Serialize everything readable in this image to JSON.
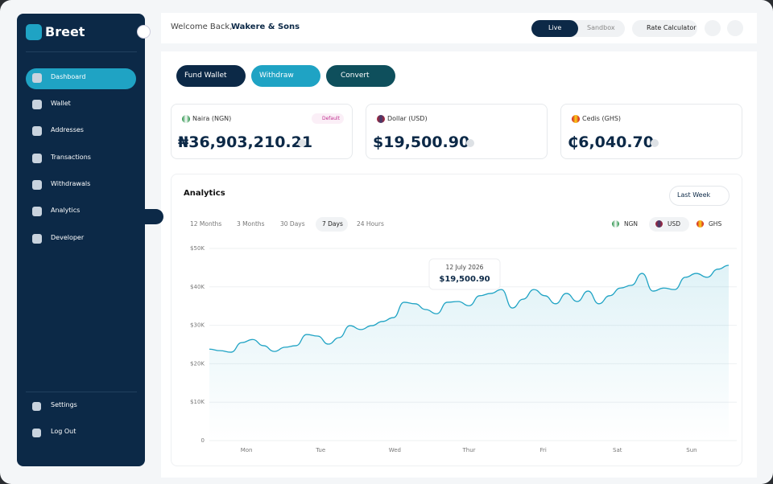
{
  "sidebar": {
    "brand": "Breet",
    "nav": [
      "Dashboard",
      "Wallet",
      "Addresses",
      "Transactions",
      "Withdrawals",
      "Analytics",
      "Developer"
    ],
    "footer": [
      "Settings",
      "Log Out"
    ]
  },
  "header": {
    "greeting": "Welcome Back,",
    "company": "Wakere & Sons",
    "modes": [
      "Live",
      "Sandbox"
    ],
    "rate_calculator": "Rate Calculator"
  },
  "actions": [
    "Fund Wallet",
    "Withdraw",
    "Convert"
  ],
  "balances": [
    {
      "label": "Naira (NGN)",
      "badge": "Default",
      "amount": "₦36,903,210.21"
    },
    {
      "label": "Dollar (USD)",
      "amount": "$19,500.90"
    },
    {
      "label": "Cedis (GHS)",
      "amount": "₵6,040.70"
    }
  ],
  "analytics": {
    "title": "Analytics",
    "period": "Last Week",
    "ranges": [
      "12 Months",
      "3 Months",
      "30 Days",
      "7 Days",
      "24 Hours"
    ],
    "currencies": [
      "NGN",
      "USD",
      "GHS"
    ],
    "chart": {
      "type": "area",
      "categories": [
        "Mon",
        "Tue",
        "Wed",
        "Thur",
        "Fri",
        "Sat",
        "Sun"
      ],
      "values": [
        23800,
        23400,
        23000,
        25500,
        26300,
        24700,
        23200,
        24300,
        24700,
        27600,
        27200,
        25100,
        26800,
        29900,
        28900,
        29900,
        31000,
        32000,
        36000,
        35600,
        34100,
        33000,
        36000,
        36200,
        35100,
        37700,
        38300,
        39300,
        34500,
        36800,
        39300,
        37700,
        35600,
        38300,
        36200,
        38900,
        35600,
        37700,
        39700,
        40400,
        43500,
        38900,
        39700,
        39300,
        42500,
        43500,
        42500,
        44600,
        45600
      ],
      "ylim": [
        0,
        50000
      ],
      "yticks": [
        0,
        {
          "value": 10000,
          "label": "$10K"
        },
        {
          "value": 20000,
          "label": "$20K"
        },
        {
          "value": 30000,
          "label": "$30K"
        },
        {
          "value": 40000,
          "label": "$40K"
        },
        {
          "value": 50000,
          "label": "$50K"
        }
      ],
      "grid": true,
      "color": "#1fa3c4",
      "tooltip": {
        "date": "12 July 2026",
        "value": "$19,500.90"
      }
    }
  }
}
